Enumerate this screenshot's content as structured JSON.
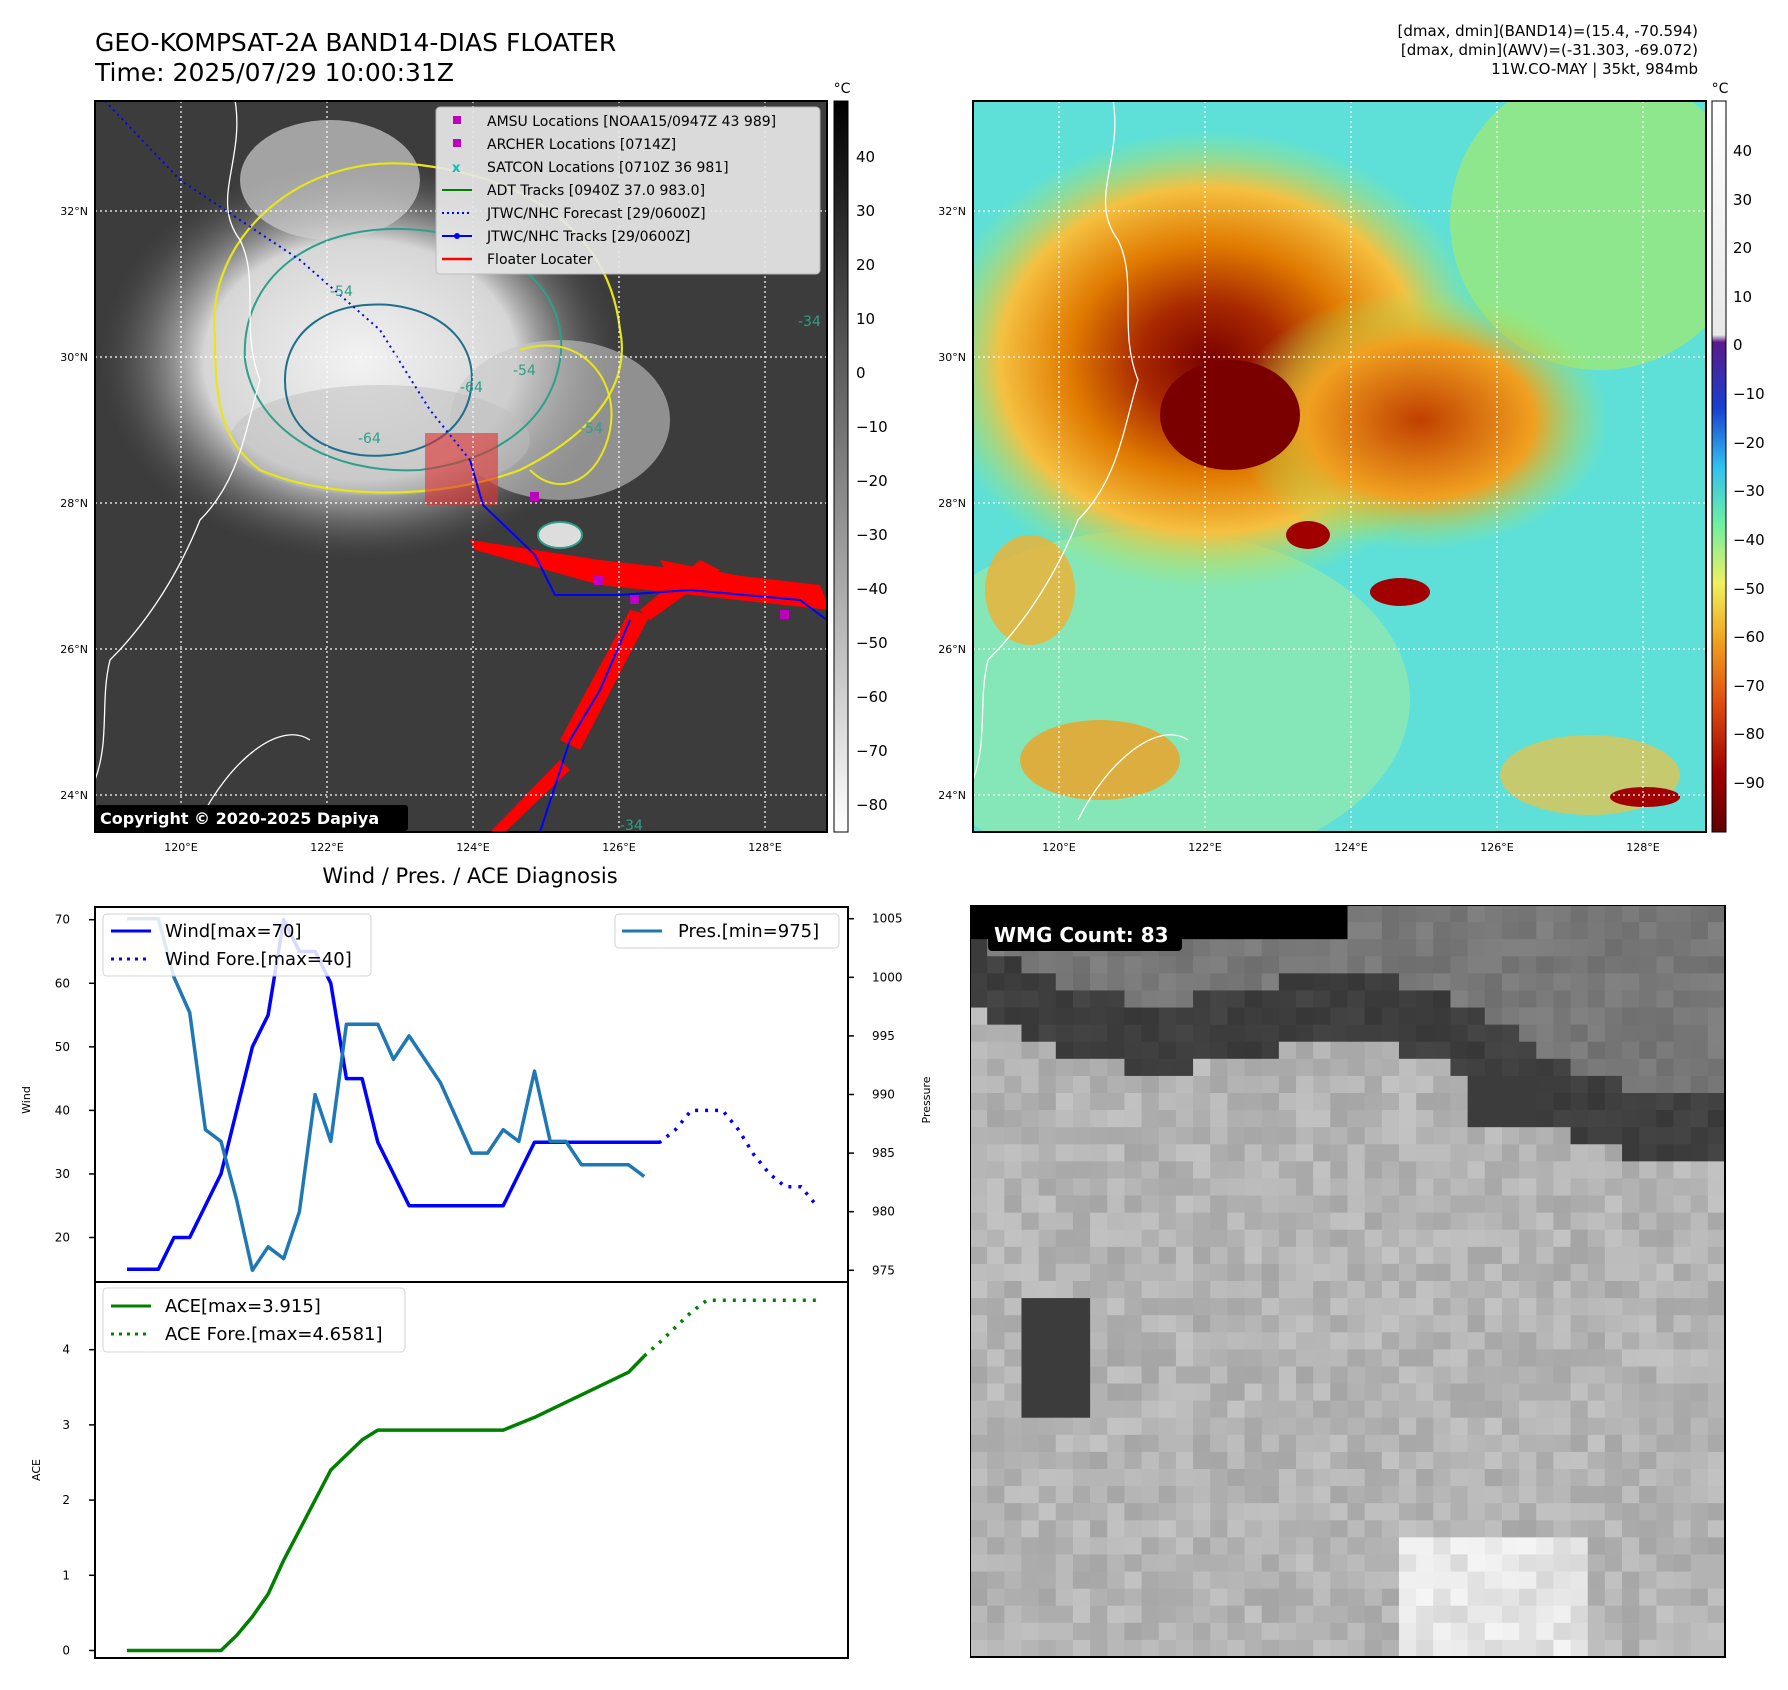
{
  "header": {
    "title_line1": "GEO-KOMPSAT-2A BAND14-DIAS FLOATER",
    "title_line2": "Time: 2025/07/29 10:00:31Z",
    "info_line1": "[dmax, dmin](BAND14)=(15.4, -70.594)",
    "info_line2": "[dmax, dmin](AWV)=(-31.303, -69.072)",
    "info_line3": "11W.CO-MAY | 35kt, 984mb"
  },
  "ir_panel": {
    "lat_labels": [
      "32°N",
      "30°N",
      "28°N",
      "26°N",
      "24°N"
    ],
    "lon_labels": [
      "120°E",
      "122°E",
      "124°E",
      "126°E",
      "128°E"
    ],
    "copyright": "Copyright © 2020-2025 Dapiya",
    "colorbar_unit": "°C",
    "colorbar_ticks": [
      "40",
      "30",
      "20",
      "10",
      "0",
      "−10",
      "−20",
      "−30",
      "−40",
      "−50",
      "−60",
      "−70",
      "−80"
    ],
    "contour_labels": [
      "-54",
      "-64",
      "-54",
      "-54",
      "-64",
      "-34",
      "-34"
    ],
    "legend": [
      {
        "label": "AMSU Locations [NOAA15/0947Z 43 989]",
        "color": "#bf00bf",
        "kind": "square"
      },
      {
        "label": "ARCHER Locations [0714Z]",
        "color": "#bf00bf",
        "kind": "square"
      },
      {
        "label": "SATCON Locations [0710Z 36 981]",
        "color": "#00bfbf",
        "kind": "x"
      },
      {
        "label": "ADT Tracks [0940Z 37.0 983.0]",
        "color": "#008000",
        "kind": "line"
      },
      {
        "label": "JTWC/NHC Forecast [29/0600Z]",
        "color": "#0000ff",
        "kind": "dotted"
      },
      {
        "label": "JTWC/NHC Tracks [29/0600Z]",
        "color": "#0000ff",
        "kind": "line-dot"
      },
      {
        "label": "Floater Locater",
        "color": "#ff0000",
        "kind": "line"
      }
    ]
  },
  "awv_panel": {
    "lat_labels": [
      "32°N",
      "30°N",
      "28°N",
      "26°N",
      "24°N"
    ],
    "lon_labels": [
      "120°E",
      "122°E",
      "124°E",
      "126°E",
      "128°E"
    ],
    "colorbar_unit": "°C",
    "colorbar_ticks": [
      "40",
      "30",
      "20",
      "10",
      "0",
      "−10",
      "−20",
      "−30",
      "−40",
      "−50",
      "−60",
      "−70",
      "−80",
      "−90"
    ]
  },
  "diagnosis": {
    "title": "Wind / Pres. / ACE Diagnosis",
    "wind_ylabel": "Wind",
    "pres_ylabel": "Pressure",
    "ace_ylabel": "ACE",
    "wind_ticks": [
      "70",
      "60",
      "50",
      "40",
      "30",
      "20"
    ],
    "pres_ticks": [
      "1005",
      "1000",
      "995",
      "990",
      "985",
      "980",
      "975"
    ],
    "ace_ticks": [
      "4",
      "3",
      "2",
      "1",
      "0"
    ],
    "legend_wind": "Wind[max=70]",
    "legend_wind_fore": "Wind Fore.[max=40]",
    "legend_pres": "Pres.[min=975]",
    "legend_ace": "ACE[max=3.915]",
    "legend_ace_fore": "ACE Fore.[max=4.6581]"
  },
  "wmg_panel": {
    "label": "WMG Count: 83"
  },
  "chart_data": [
    {
      "type": "line",
      "title": "Wind / Pres. / ACE Diagnosis",
      "ylabel": "Wind",
      "ylim": [
        13,
        72
      ],
      "x": [
        0,
        1,
        2,
        3,
        4,
        5,
        6,
        7,
        8,
        9,
        10,
        11,
        12,
        13,
        14,
        15,
        16,
        17,
        18,
        19,
        20,
        21,
        22,
        23,
        24,
        25,
        26,
        27,
        28,
        29,
        30,
        31,
        32,
        33,
        34,
        35,
        36,
        37,
        38,
        39,
        40,
        41,
        42,
        43,
        44
      ],
      "series": [
        {
          "name": "Wind[max=70]",
          "color": "#0000ff",
          "style": "solid",
          "x": [
            0,
            2,
            3,
            4,
            6,
            8,
            9,
            10,
            11,
            12,
            13,
            14,
            15,
            16,
            17,
            18,
            20,
            22,
            24,
            26,
            28,
            30,
            32,
            34
          ],
          "values": [
            15,
            15,
            20,
            20,
            30,
            50,
            55,
            70,
            65,
            65,
            60,
            45,
            45,
            35,
            30,
            25,
            25,
            25,
            25,
            35,
            35,
            35,
            35,
            35
          ]
        },
        {
          "name": "Wind Fore.[max=40]",
          "color": "#0000ff",
          "style": "dotted",
          "x": [
            32,
            34,
            35,
            36,
            37,
            38,
            39,
            40,
            41,
            42,
            43,
            44
          ],
          "values": [
            35,
            35,
            37,
            40,
            40,
            40,
            37,
            33,
            30,
            28,
            28,
            25
          ]
        }
      ]
    },
    {
      "type": "line",
      "ylabel": "Pressure",
      "ylim": [
        974,
        1006
      ],
      "series": [
        {
          "name": "Pres.[min=975]",
          "color": "#1f77b4",
          "style": "solid",
          "x": [
            0,
            1,
            2,
            3,
            4,
            5,
            6,
            7,
            8,
            9,
            10,
            11,
            12,
            13,
            14,
            15,
            16,
            17,
            18,
            19,
            20,
            21,
            22,
            23,
            24,
            25,
            26,
            27,
            28,
            29,
            30,
            31,
            32,
            33
          ],
          "values": [
            1005,
            1005,
            1005,
            1000,
            997,
            987,
            986,
            981,
            975,
            977,
            976,
            980,
            990,
            986,
            996,
            996,
            996,
            993,
            995,
            993,
            991,
            988,
            985,
            985,
            987,
            986,
            992,
            986,
            986,
            984,
            984,
            984,
            984,
            983
          ]
        }
      ]
    },
    {
      "type": "line",
      "ylabel": "ACE",
      "ylim": [
        -0.1,
        4.9
      ],
      "series": [
        {
          "name": "ACE[max=3.915]",
          "color": "#008000",
          "style": "solid",
          "x": [
            0,
            2,
            4,
            6,
            7,
            8,
            9,
            10,
            11,
            12,
            13,
            14,
            15,
            16,
            18,
            20,
            22,
            24,
            26,
            28,
            30,
            32,
            33
          ],
          "values": [
            0,
            0,
            0,
            0,
            0.2,
            0.45,
            0.75,
            1.2,
            1.6,
            2.0,
            2.4,
            2.6,
            2.8,
            2.93,
            2.93,
            2.93,
            2.93,
            2.93,
            3.1,
            3.3,
            3.5,
            3.7,
            3.915
          ]
        },
        {
          "name": "ACE Fore.[max=4.6581]",
          "color": "#008000",
          "style": "dotted",
          "x": [
            33,
            34,
            35,
            36,
            37,
            38,
            40,
            42,
            44
          ],
          "values": [
            3.915,
            4.1,
            4.3,
            4.5,
            4.6581,
            4.6581,
            4.6581,
            4.6581,
            4.6581
          ]
        }
      ]
    }
  ]
}
